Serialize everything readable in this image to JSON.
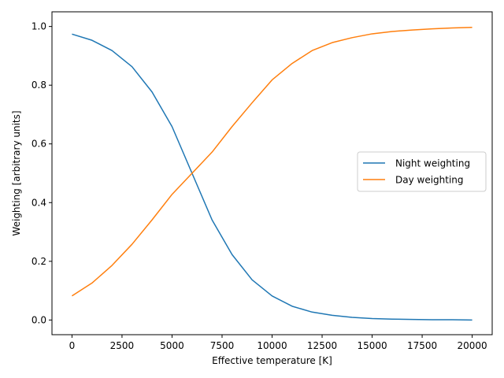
{
  "chart_data": {
    "type": "line",
    "title": "",
    "xlabel": "Effective temperature [K]",
    "ylabel": "Weighting [arbitrary units]",
    "xlim": [
      -1000,
      21000
    ],
    "ylim": [
      -0.05,
      1.05
    ],
    "xticks": [
      0,
      2500,
      5000,
      7500,
      10000,
      12500,
      15000,
      17500,
      20000
    ],
    "xtick_labels": [
      "0",
      "2500",
      "5000",
      "7500",
      "10000",
      "12500",
      "15000",
      "17500",
      "20000"
    ],
    "yticks": [
      0.0,
      0.2,
      0.4,
      0.6,
      0.8,
      1.0
    ],
    "ytick_labels": [
      "0.0",
      "0.2",
      "0.4",
      "0.6",
      "0.8",
      "1.0"
    ],
    "grid": false,
    "legend_position": "center-right",
    "x": [
      0,
      1000,
      2000,
      3000,
      4000,
      5000,
      6000,
      7000,
      8000,
      9000,
      10000,
      11000,
      12000,
      13000,
      14000,
      15000,
      16000,
      17000,
      18000,
      19000,
      20000
    ],
    "series": [
      {
        "name": "Night weighting",
        "color": "#1f77b4",
        "values": [
          0.974,
          0.953,
          0.918,
          0.863,
          0.777,
          0.659,
          0.5,
          0.341,
          0.223,
          0.137,
          0.082,
          0.047,
          0.027,
          0.016,
          0.009,
          0.005,
          0.003,
          0.002,
          0.001,
          0.001,
          0.0
        ]
      },
      {
        "name": "Day weighting",
        "color": "#ff7f0e",
        "values": [
          0.082,
          0.126,
          0.186,
          0.258,
          0.341,
          0.428,
          0.5,
          0.572,
          0.659,
          0.74,
          0.818,
          0.874,
          0.918,
          0.945,
          0.962,
          0.975,
          0.983,
          0.988,
          0.992,
          0.995,
          0.997
        ]
      }
    ]
  }
}
